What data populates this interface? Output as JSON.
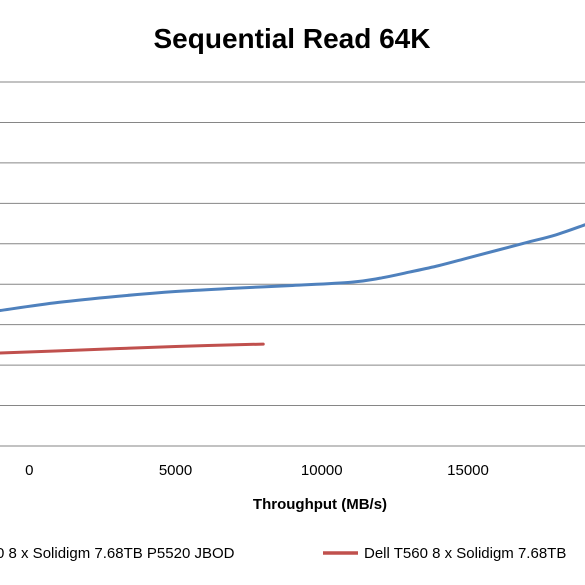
{
  "chart_data": {
    "type": "line",
    "title": "Sequential Read 64K",
    "xlabel": "Throughput (MB/s)",
    "ylabel": "",
    "xlim": [
      -1000,
      19000
    ],
    "ylim": [
      0,
      10
    ],
    "x_ticks": [
      0,
      5000,
      10000,
      15000
    ],
    "x_tick_labels": [
      "0",
      "5000",
      "10000",
      "15000"
    ],
    "y_ticks": [
      1,
      2,
      3,
      4,
      5,
      6,
      7,
      8,
      9
    ],
    "grid": true,
    "legend_position": "bottom",
    "series": [
      {
        "name": "8 x Solidigm 7.68TB P5520 JBOD",
        "legend_text": "0 8 x Solidigm 7.68TB P5520 JBOD",
        "color": "#4f81bd",
        "x": [
          -1000,
          1000,
          3000,
          5000,
          7000,
          9000,
          11000,
          12000,
          13000,
          14000,
          15000,
          16000,
          17000,
          18000,
          19000
        ],
        "y": [
          3.35,
          3.55,
          3.7,
          3.82,
          3.9,
          3.97,
          4.05,
          4.15,
          4.3,
          4.46,
          4.65,
          4.84,
          5.03,
          5.22,
          5.47
        ]
      },
      {
        "name": "Dell T560 8 x Solidigm 7.68TB",
        "legend_text": "Dell T560 8 x Solidigm 7.68TB",
        "color": "#c0504d",
        "x": [
          -1000,
          2000,
          5000,
          8000
        ],
        "y": [
          2.3,
          2.38,
          2.46,
          2.52
        ]
      }
    ]
  }
}
